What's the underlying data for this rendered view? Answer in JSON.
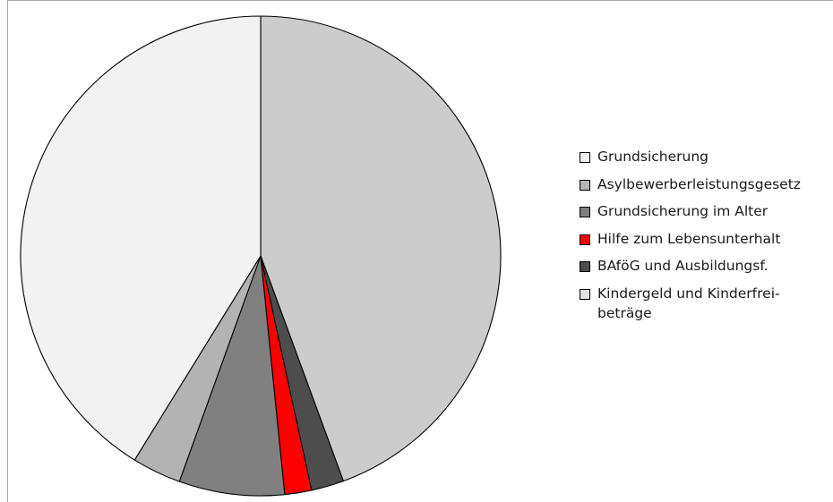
{
  "chart_data": {
    "type": "pie",
    "title": "",
    "start_angle_deg": 0,
    "direction": "clockwise",
    "legend_position": "right",
    "slices": [
      {
        "label": "Kindergeld und Kinderfrei-\nbeträge",
        "value": 44.4,
        "color": "#cccccc"
      },
      {
        "label": "BAföG und Ausbildungsf.",
        "value": 2.2,
        "color": "#4d4d4d"
      },
      {
        "label": "Hilfe zum Lebensunterhalt",
        "value": 1.8,
        "color": "#ff0000"
      },
      {
        "label": "Grundsicherung im Alter",
        "value": 7.1,
        "color": "#808080"
      },
      {
        "label": "Asylbewerberleistungsgesetz",
        "value": 3.3,
        "color": "#b3b3b3"
      },
      {
        "label": "Grundsicherung",
        "value": 41.2,
        "color": "#f2f2f2"
      }
    ],
    "legend": [
      {
        "label": "Grundsicherung",
        "color": "#f2f2f2"
      },
      {
        "label": "Asylbewerberleistungsgesetz",
        "color": "#b3b3b3"
      },
      {
        "label": "Grundsicherung im Alter",
        "color": "#808080"
      },
      {
        "label": "Hilfe zum Lebensunterhalt",
        "color": "#ff0000"
      },
      {
        "label": "BAföG und Ausbildungsf.",
        "color": "#4d4d4d"
      },
      {
        "label": "Kindergeld und Kinderfrei-\nbeträge",
        "color": "#e0e0e0"
      }
    ]
  }
}
